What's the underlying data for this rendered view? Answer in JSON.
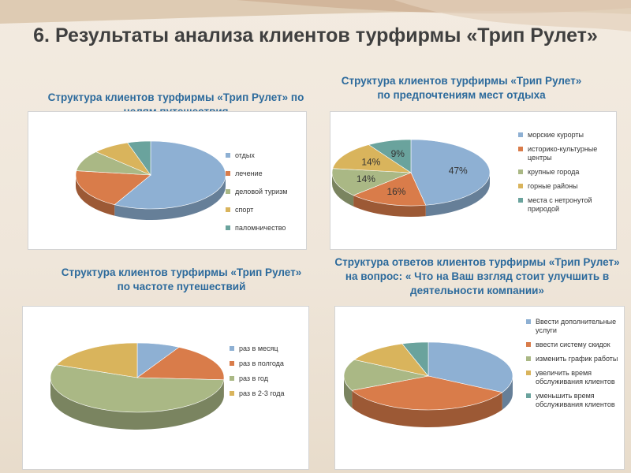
{
  "slide": {
    "title": "6. Результаты анализа клиентов турфирмы «Трип Рулет»"
  },
  "colors": [
    "#8eb0d3",
    "#d97c4a",
    "#aab885",
    "#d9b45c",
    "#6aa39d"
  ],
  "chart_data": [
    {
      "type": "pie",
      "title": "Структура клиентов турфирмы «Трип Рулет» по целям путешествия",
      "categories": [
        "отдых",
        "лечение",
        "деловой туризм",
        "спорт",
        "паломничество"
      ],
      "values": [
        58,
        19,
        10,
        8,
        5
      ],
      "show_percent_labels": false,
      "legend": "right"
    },
    {
      "type": "pie",
      "title": "Структура клиентов турфирмы «Трип Рулет» по предпочтениям мест отдыха",
      "categories": [
        "морские курорты",
        "историко-культурные центры",
        "крупные города",
        "горные районы",
        "места с нетронутой природой"
      ],
      "values": [
        47,
        16,
        14,
        14,
        9
      ],
      "data_labels": [
        "47%",
        "16%",
        "14%",
        "14%",
        "9%"
      ],
      "show_percent_labels": true,
      "legend": "right"
    },
    {
      "type": "pie",
      "title": "Структура клиентов турфирмы «Трип Рулет» по частоте путешествий",
      "categories": [
        "раз в месяц",
        "раз в полгода",
        "раз в год",
        "раз в 2-3 года"
      ],
      "values": [
        8,
        18,
        55,
        19
      ],
      "show_percent_labels": false,
      "legend": "right"
    },
    {
      "type": "pie",
      "title": "Структура ответов клиентов турфирмы «Трип Рулет» на вопрос: « Что на Ваш взгляд стоит улучшить в деятельности компании»",
      "categories": [
        "Ввести дополнительные услуги",
        "ввести систему скидок",
        "изменить график работы",
        "увеличить время обслуживания клиентов",
        "уменьшить время обслуживания клиентов"
      ],
      "values": [
        33,
        35,
        15,
        12,
        5
      ],
      "show_percent_labels": false,
      "legend": "right"
    }
  ]
}
